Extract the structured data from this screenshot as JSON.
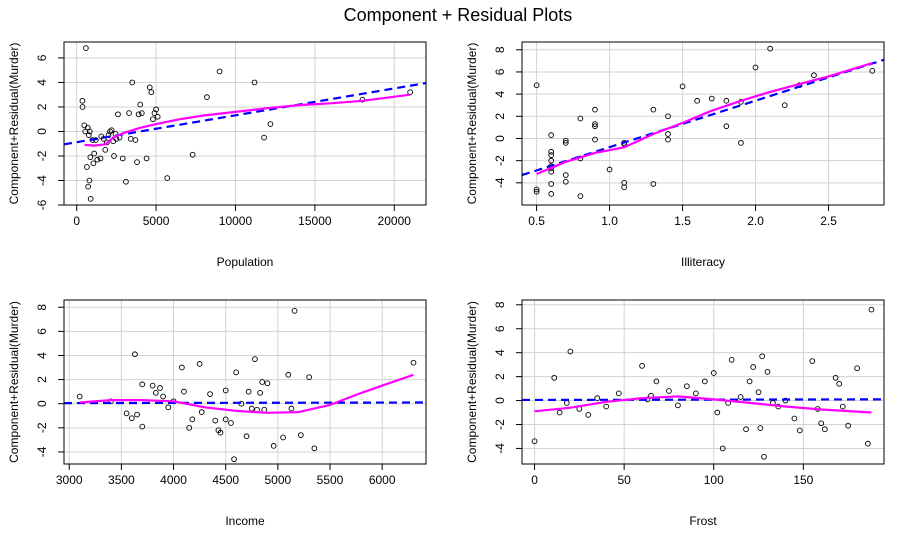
{
  "figure": {
    "title": "Component + Residual Plots"
  },
  "chart_data": [
    {
      "type": "scatter",
      "xlabel": "Population",
      "ylabel": "Component+Residual(Murder)",
      "xlim": [
        -800,
        22000
      ],
      "ylim": [
        -6,
        7.3
      ],
      "xticks": [
        0,
        5000,
        10000,
        15000,
        20000
      ],
      "yticks": [
        -6,
        -4,
        -2,
        0,
        2,
        4,
        6
      ],
      "grid": true,
      "colors": {
        "fit": "#0000ff",
        "smooth": "#ff00ff",
        "points": "#000000"
      },
      "points": [
        [
          360,
          2.5
        ],
        [
          370,
          2.0
        ],
        [
          480,
          0.5
        ],
        [
          540,
          0
        ],
        [
          580,
          6.8
        ],
        [
          640,
          -2.9
        ],
        [
          700,
          0.3
        ],
        [
          720,
          -4.5
        ],
        [
          760,
          -0.3
        ],
        [
          800,
          -4
        ],
        [
          820,
          0
        ],
        [
          860,
          -2.1
        ],
        [
          880,
          -5.5
        ],
        [
          1000,
          -0.7
        ],
        [
          1050,
          -2.6
        ],
        [
          1100,
          -1.8
        ],
        [
          1200,
          -0.7
        ],
        [
          1300,
          -2.3
        ],
        [
          1500,
          -2.2
        ],
        [
          1550,
          -0.4
        ],
        [
          1700,
          -0.6
        ],
        [
          1800,
          -1.5
        ],
        [
          1900,
          -0.9
        ],
        [
          2000,
          -0.3
        ],
        [
          2100,
          0
        ],
        [
          2200,
          0.1
        ],
        [
          2300,
          -0.8
        ],
        [
          2350,
          -2
        ],
        [
          2450,
          -0.2
        ],
        [
          2500,
          -0.6
        ],
        [
          2600,
          1.4
        ],
        [
          2700,
          -0.5
        ],
        [
          2900,
          -2.2
        ],
        [
          3100,
          -4.1
        ],
        [
          3300,
          1.5
        ],
        [
          3400,
          -0.6
        ],
        [
          3500,
          4
        ],
        [
          3700,
          -0.7
        ],
        [
          3800,
          -2.5
        ],
        [
          3900,
          1.4
        ],
        [
          4000,
          2.2
        ],
        [
          4100,
          1.5
        ],
        [
          4400,
          -2.2
        ],
        [
          4600,
          3.6
        ],
        [
          4700,
          3.2
        ],
        [
          4800,
          1
        ],
        [
          4900,
          1.5
        ],
        [
          5000,
          1.8
        ],
        [
          5100,
          1.2
        ],
        [
          5700,
          -3.8
        ],
        [
          7300,
          -1.9
        ],
        [
          8200,
          2.8
        ],
        [
          9000,
          4.9
        ],
        [
          11200,
          4
        ],
        [
          11800,
          -0.5
        ],
        [
          12200,
          0.6
        ],
        [
          18000,
          2.6
        ],
        [
          21000,
          3.2
        ]
      ],
      "fit_line": [
        [
          -800,
          -1.05
        ],
        [
          22000,
          3.95
        ]
      ],
      "smooth": [
        [
          500,
          -1.1
        ],
        [
          1100,
          -1.15
        ],
        [
          1800,
          -1.05
        ],
        [
          2300,
          -0.5
        ],
        [
          3000,
          -0.1
        ],
        [
          4000,
          0.3
        ],
        [
          5000,
          0.6
        ],
        [
          6500,
          1.0
        ],
        [
          8000,
          1.3
        ],
        [
          10000,
          1.6
        ],
        [
          12000,
          1.9
        ],
        [
          14000,
          2.15
        ],
        [
          16000,
          2.3
        ],
        [
          18000,
          2.5
        ],
        [
          21000,
          3.0
        ]
      ]
    },
    {
      "type": "scatter",
      "xlabel": "Illiteracy",
      "ylabel": "Component+Residual(Murder)",
      "xlim": [
        0.4,
        2.88
      ],
      "ylim": [
        -6,
        8.7
      ],
      "xticks": [
        0.5,
        1.0,
        1.5,
        2.0,
        2.5
      ],
      "xtick_labels": [
        "0.5",
        "1.0",
        "1.5",
        "2.0",
        "2.5"
      ],
      "yticks": [
        -4,
        -2,
        0,
        2,
        4,
        6,
        8
      ],
      "grid": true,
      "colors": {
        "fit": "#0000ff",
        "smooth": "#ff00ff",
        "points": "#000000"
      },
      "points": [
        [
          0.5,
          4.8
        ],
        [
          0.5,
          -4.8
        ],
        [
          0.5,
          -4.6
        ],
        [
          0.6,
          -1.2
        ],
        [
          0.6,
          -1.5
        ],
        [
          0.6,
          -2
        ],
        [
          0.6,
          -2.5
        ],
        [
          0.6,
          -2.7
        ],
        [
          0.6,
          -3
        ],
        [
          0.6,
          -4.1
        ],
        [
          0.6,
          -5
        ],
        [
          0.6,
          0.3
        ],
        [
          0.7,
          -0.4
        ],
        [
          0.7,
          -0.2
        ],
        [
          0.7,
          -3.3
        ],
        [
          0.7,
          -3.9
        ],
        [
          0.8,
          -1.8
        ],
        [
          0.8,
          1.8
        ],
        [
          0.8,
          -5.2
        ],
        [
          0.9,
          2.6
        ],
        [
          0.9,
          1.3
        ],
        [
          0.9,
          1.1
        ],
        [
          0.9,
          -0.1
        ],
        [
          1.0,
          -2.8
        ],
        [
          1.1,
          -0.4
        ],
        [
          1.1,
          -0.5
        ],
        [
          1.1,
          -4
        ],
        [
          1.1,
          -4.4
        ],
        [
          1.3,
          -4.1
        ],
        [
          1.3,
          2.6
        ],
        [
          1.4,
          0.4
        ],
        [
          1.4,
          -0.1
        ],
        [
          1.4,
          2
        ],
        [
          1.5,
          4.7
        ],
        [
          1.6,
          3.4
        ],
        [
          1.7,
          3.6
        ],
        [
          1.8,
          3.4
        ],
        [
          1.8,
          1.1
        ],
        [
          1.9,
          3.3
        ],
        [
          1.9,
          -0.4
        ],
        [
          2.0,
          6.4
        ],
        [
          2.1,
          8.1
        ],
        [
          2.2,
          3
        ],
        [
          2.3,
          4.8
        ],
        [
          2.4,
          5.7
        ],
        [
          2.8,
          6.1
        ]
      ],
      "fit_line": [
        [
          0.4,
          -3.3
        ],
        [
          2.88,
          7.1
        ]
      ],
      "smooth": [
        [
          0.5,
          -3.2
        ],
        [
          0.7,
          -2.1
        ],
        [
          0.9,
          -1.3
        ],
        [
          1.1,
          -0.8
        ],
        [
          1.3,
          0.4
        ],
        [
          1.5,
          1.4
        ],
        [
          1.7,
          2.5
        ],
        [
          1.9,
          3.4
        ],
        [
          2.1,
          4.2
        ],
        [
          2.3,
          4.9
        ],
        [
          2.5,
          5.6
        ],
        [
          2.8,
          6.8
        ]
      ]
    },
    {
      "type": "scatter",
      "xlabel": "Income",
      "ylabel": "Component+Residual(Murder)",
      "xlim": [
        2950,
        6420
      ],
      "ylim": [
        -5,
        8.6
      ],
      "xticks": [
        3000,
        3500,
        4000,
        4500,
        5000,
        5500,
        6000
      ],
      "yticks": [
        -4,
        -2,
        0,
        2,
        4,
        6,
        8
      ],
      "grid": true,
      "colors": {
        "fit": "#0000ff",
        "smooth": "#ff00ff",
        "points": "#000000"
      },
      "points": [
        [
          3100,
          0.6
        ],
        [
          3400,
          0.2
        ],
        [
          3550,
          -0.8
        ],
        [
          3600,
          -1.2
        ],
        [
          3630,
          4.1
        ],
        [
          3650,
          -0.9
        ],
        [
          3700,
          -1.9
        ],
        [
          3700,
          1.6
        ],
        [
          3800,
          1.5
        ],
        [
          3830,
          0.9
        ],
        [
          3870,
          1.3
        ],
        [
          3900,
          0.6
        ],
        [
          3950,
          -0.3
        ],
        [
          4000,
          0.2
        ],
        [
          4080,
          3
        ],
        [
          4100,
          1
        ],
        [
          4150,
          -2
        ],
        [
          4180,
          -1.3
        ],
        [
          4250,
          3.3
        ],
        [
          4270,
          -0.7
        ],
        [
          4350,
          0.8
        ],
        [
          4400,
          -1.4
        ],
        [
          4430,
          -2.2
        ],
        [
          4450,
          -2.4
        ],
        [
          4500,
          -1.3
        ],
        [
          4500,
          1.1
        ],
        [
          4550,
          -1.6
        ],
        [
          4580,
          -4.6
        ],
        [
          4600,
          2.6
        ],
        [
          4650,
          0
        ],
        [
          4700,
          -2.7
        ],
        [
          4720,
          1
        ],
        [
          4750,
          -0.4
        ],
        [
          4780,
          3.7
        ],
        [
          4800,
          -0.5
        ],
        [
          4830,
          0.9
        ],
        [
          4850,
          1.8
        ],
        [
          4870,
          -0.5
        ],
        [
          4900,
          1.7
        ],
        [
          4960,
          -3.5
        ],
        [
          5050,
          -2.8
        ],
        [
          5100,
          2.4
        ],
        [
          5130,
          -0.4
        ],
        [
          5160,
          7.7
        ],
        [
          5220,
          -2.6
        ],
        [
          5300,
          2.2
        ],
        [
          5350,
          -3.7
        ],
        [
          6300,
          3.4
        ]
      ],
      "fit_line": [
        [
          2950,
          0.05
        ],
        [
          6420,
          0.1
        ]
      ],
      "smooth": [
        [
          3100,
          0.1
        ],
        [
          3400,
          0.3
        ],
        [
          3700,
          0.3
        ],
        [
          4000,
          0.2
        ],
        [
          4300,
          -0.3
        ],
        [
          4600,
          -0.6
        ],
        [
          4900,
          -0.75
        ],
        [
          5200,
          -0.7
        ],
        [
          5500,
          -0.1
        ],
        [
          5800,
          0.9
        ],
        [
          6000,
          1.5
        ],
        [
          6300,
          2.4
        ]
      ]
    },
    {
      "type": "scatter",
      "xlabel": "Frost",
      "ylabel": "Component+Residual(Murder)",
      "xlim": [
        -7,
        195
      ],
      "ylim": [
        -5.3,
        8.4
      ],
      "xticks": [
        0,
        50,
        100,
        150
      ],
      "yticks": [
        -4,
        -2,
        0,
        2,
        4,
        6,
        8
      ],
      "grid": true,
      "colors": {
        "fit": "#0000ff",
        "smooth": "#ff00ff",
        "points": "#000000"
      },
      "points": [
        [
          0,
          -3.4
        ],
        [
          11,
          1.9
        ],
        [
          14,
          -1
        ],
        [
          18,
          -0.2
        ],
        [
          20,
          4.1
        ],
        [
          25,
          -0.7
        ],
        [
          30,
          -1.2
        ],
        [
          35,
          0.2
        ],
        [
          40,
          -0.5
        ],
        [
          47,
          0.6
        ],
        [
          60,
          2.9
        ],
        [
          63,
          0.1
        ],
        [
          65,
          0.4
        ],
        [
          68,
          1.6
        ],
        [
          75,
          0.8
        ],
        [
          80,
          -0.4
        ],
        [
          85,
          1.2
        ],
        [
          90,
          0.6
        ],
        [
          95,
          1.6
        ],
        [
          100,
          2.3
        ],
        [
          102,
          -1
        ],
        [
          105,
          -4
        ],
        [
          108,
          -0.2
        ],
        [
          110,
          3.4
        ],
        [
          115,
          0.3
        ],
        [
          118,
          -2.4
        ],
        [
          120,
          1.6
        ],
        [
          122,
          2.8
        ],
        [
          125,
          0.7
        ],
        [
          126,
          -2.3
        ],
        [
          127,
          3.7
        ],
        [
          128,
          -4.7
        ],
        [
          130,
          2.4
        ],
        [
          133,
          -0.2
        ],
        [
          136,
          -0.5
        ],
        [
          140,
          0
        ],
        [
          145,
          -1.5
        ],
        [
          148,
          -2.5
        ],
        [
          155,
          3.3
        ],
        [
          158,
          -0.7
        ],
        [
          160,
          -1.9
        ],
        [
          162,
          -2.4
        ],
        [
          168,
          1.9
        ],
        [
          170,
          1.4
        ],
        [
          172,
          -0.5
        ],
        [
          175,
          -2.1
        ],
        [
          180,
          2.7
        ],
        [
          186,
          -3.6
        ],
        [
          188,
          7.6
        ]
      ],
      "fit_line": [
        [
          -7,
          0.05
        ],
        [
          195,
          0.1
        ]
      ],
      "smooth": [
        [
          0,
          -0.9
        ],
        [
          20,
          -0.6
        ],
        [
          40,
          -0.1
        ],
        [
          60,
          0.2
        ],
        [
          80,
          0.35
        ],
        [
          100,
          0.1
        ],
        [
          120,
          -0.2
        ],
        [
          140,
          -0.5
        ],
        [
          160,
          -0.75
        ],
        [
          188,
          -1.0
        ]
      ]
    }
  ]
}
